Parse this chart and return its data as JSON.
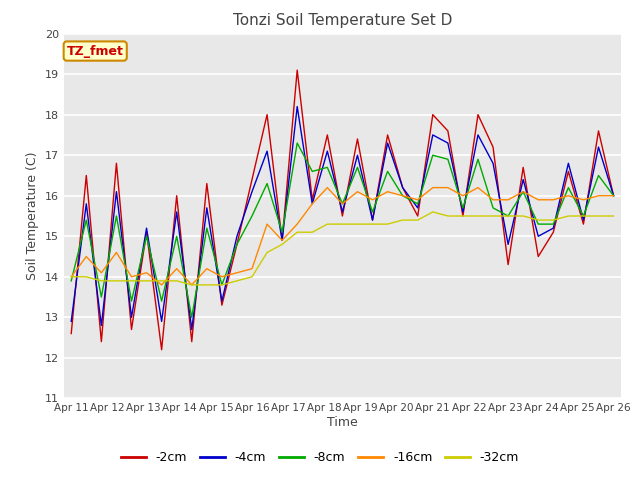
{
  "title": "Tonzi Soil Temperature Set D",
  "xlabel": "Time",
  "ylabel": "Soil Temperature (C)",
  "ylim": [
    11.0,
    20.0
  ],
  "yticks": [
    11.0,
    12.0,
    13.0,
    14.0,
    15.0,
    16.0,
    17.0,
    18.0,
    19.0,
    20.0
  ],
  "fig_bg": "#ffffff",
  "plot_bg": "#e8e8e8",
  "legend_label": "TZ_fmet",
  "series_labels": [
    "-2cm",
    "-4cm",
    "-8cm",
    "-16cm",
    "-32cm"
  ],
  "series_colors": [
    "#cc0000",
    "#0000cc",
    "#00aa00",
    "#ff8800",
    "#cccc00"
  ],
  "x_labels": [
    "Apr 11",
    "Apr 12",
    "Apr 13",
    "Apr 14",
    "Apr 15",
    "Apr 16",
    "Apr 17",
    "Apr 18",
    "Apr 19",
    "Apr 20",
    "Apr 21",
    "Apr 22",
    "Apr 23",
    "Apr 24",
    "Apr 25",
    "Apr 26"
  ],
  "series": {
    "-2cm": [
      12.6,
      16.5,
      12.4,
      16.8,
      12.7,
      15.1,
      12.2,
      16.0,
      12.4,
      16.3,
      13.3,
      14.8,
      16.4,
      18.0,
      14.9,
      19.1,
      15.9,
      17.5,
      15.5,
      17.4,
      15.4,
      17.5,
      16.2,
      15.5,
      18.0,
      17.6,
      15.5,
      18.0,
      17.2,
      14.3,
      16.7,
      14.5,
      15.1,
      16.6,
      15.3,
      17.6,
      16.0
    ],
    "-4cm": [
      12.9,
      15.8,
      12.8,
      16.1,
      13.0,
      15.2,
      12.9,
      15.6,
      12.7,
      15.7,
      13.4,
      15.0,
      16.1,
      17.1,
      14.9,
      18.2,
      15.8,
      17.1,
      15.6,
      17.0,
      15.4,
      17.3,
      16.2,
      15.7,
      17.5,
      17.3,
      15.6,
      17.5,
      16.8,
      14.8,
      16.4,
      15.0,
      15.2,
      16.8,
      15.4,
      17.2,
      16.0
    ],
    "-8cm": [
      13.9,
      15.4,
      13.5,
      15.5,
      13.4,
      15.0,
      13.4,
      15.0,
      13.0,
      15.2,
      13.8,
      14.8,
      15.5,
      16.3,
      15.1,
      17.3,
      16.6,
      16.7,
      15.8,
      16.7,
      15.6,
      16.6,
      16.0,
      15.8,
      17.0,
      16.9,
      15.7,
      16.9,
      15.7,
      15.5,
      16.1,
      15.3,
      15.3,
      16.2,
      15.5,
      16.5,
      16.0
    ],
    "-16cm": [
      14.0,
      14.5,
      14.1,
      14.6,
      14.0,
      14.1,
      13.8,
      14.2,
      13.8,
      14.2,
      14.0,
      14.1,
      14.2,
      15.3,
      14.9,
      15.3,
      15.8,
      16.2,
      15.8,
      16.1,
      15.9,
      16.1,
      16.0,
      15.9,
      16.2,
      16.2,
      16.0,
      16.2,
      15.9,
      15.9,
      16.1,
      15.9,
      15.9,
      16.0,
      15.9,
      16.0,
      16.0
    ],
    "-32cm": [
      14.0,
      14.0,
      13.9,
      13.9,
      13.9,
      13.9,
      13.9,
      13.9,
      13.8,
      13.8,
      13.8,
      13.9,
      14.0,
      14.6,
      14.8,
      15.1,
      15.1,
      15.3,
      15.3,
      15.3,
      15.3,
      15.3,
      15.4,
      15.4,
      15.6,
      15.5,
      15.5,
      15.5,
      15.5,
      15.5,
      15.5,
      15.4,
      15.4,
      15.5,
      15.5,
      15.5,
      15.5
    ]
  }
}
